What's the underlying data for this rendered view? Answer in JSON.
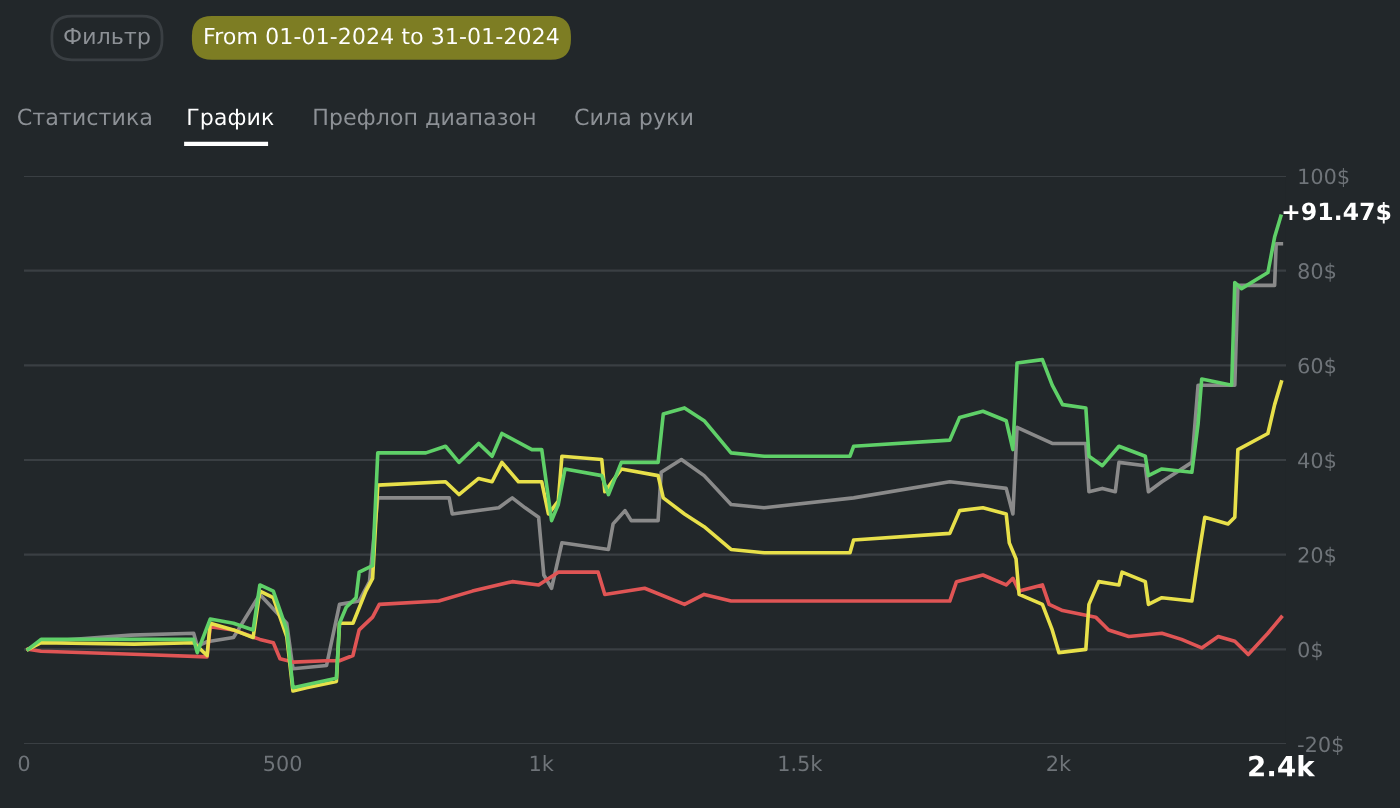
{
  "chart_data": {
    "type": "line",
    "xlim": [
      0,
      2440
    ],
    "ylim": [
      -20,
      100
    ],
    "xticks": [
      0,
      500,
      {
        "value": 1000,
        "label": "1k"
      },
      {
        "value": 1500,
        "label": "1.5k"
      },
      {
        "value": 2000,
        "label": "2k"
      },
      {
        "value": 2430,
        "label": "2.4k"
      }
    ],
    "yticks": [
      {
        "value": -20,
        "label": "-20$"
      },
      {
        "value": 0,
        "label": "0$"
      },
      {
        "value": 20,
        "label": "20$"
      },
      {
        "value": 40,
        "label": "40$"
      },
      {
        "value": 60,
        "label": "60$"
      },
      {
        "value": 80,
        "label": "80$"
      },
      {
        "value": 100,
        "label": "100$"
      }
    ],
    "grid": "y",
    "legend": false,
    "annotations": [
      "Фильтр",
      "From 01-01-2024 to 31-01-2024",
      "Статистика",
      "График",
      "Префлоп диапазон",
      "Сила руки",
      {
        "text": "+91.47$",
        "x": 2430,
        "y": 91.5
      }
    ],
    "series": [
      {
        "color": "#8a8a8a",
        "x": [
          8,
          33,
          207,
          328,
          335,
          354,
          405,
          456,
          508,
          520,
          585,
          610,
          648,
          668,
          684,
          822,
          828,
          918,
          944,
          969,
          995,
          1005,
          1020,
          1040,
          1130,
          1139,
          1162,
          1174,
          1226,
          1232,
          1271,
          1315,
          1367,
          1431,
          1604,
          1790,
          1899,
          1912,
          1920,
          1988,
          2053,
          2059,
          2085,
          2110,
          2117,
          2168,
          2174,
          2200,
          2258,
          2270,
          2341,
          2347,
          2418,
          2421,
          2431
        ],
        "values": [
          0,
          1.6,
          3.0,
          3.4,
          0.7,
          1.6,
          2.5,
          11.6,
          5.5,
          -4.1,
          -3.4,
          9.5,
          10.2,
          14.3,
          32.0,
          32.0,
          28.6,
          29.9,
          32.0,
          29.9,
          27.9,
          15.7,
          12.9,
          22.5,
          21.1,
          26.5,
          29.3,
          27.2,
          27.2,
          37.4,
          40.1,
          36.7,
          30.6,
          29.9,
          32.0,
          35.4,
          34.0,
          28.6,
          46.9,
          43.5,
          43.5,
          33.3,
          34.0,
          33.3,
          39.5,
          38.8,
          33.3,
          35.4,
          39.5,
          55.8,
          55.8,
          76.9,
          76.9,
          85.7,
          85.7
        ]
      },
      {
        "color": "#e05555",
        "x": [
          8,
          33,
          226,
          354,
          360,
          405,
          456,
          482,
          495,
          520,
          585,
          610,
          636,
          648,
          674,
          687,
          802,
          867,
          944,
          995,
          1033,
          1110,
          1123,
          1200,
          1277,
          1315,
          1367,
          1790,
          1803,
          1854,
          1899,
          1912,
          1924,
          1969,
          1982,
          2008,
          2072,
          2097,
          2136,
          2200,
          2238,
          2277,
          2309,
          2341,
          2367,
          2405,
          2431
        ],
        "values": [
          0,
          -0.4,
          -1.1,
          -1.6,
          4.8,
          4.1,
          2.1,
          1.4,
          -2.0,
          -2.7,
          -2.4,
          -2.4,
          -1.3,
          4.1,
          6.8,
          9.5,
          10.2,
          12.3,
          14.3,
          13.6,
          16.3,
          16.3,
          11.6,
          12.9,
          9.5,
          11.6,
          10.2,
          10.2,
          14.3,
          15.7,
          13.6,
          15.0,
          12.3,
          13.6,
          9.5,
          8.2,
          6.8,
          4.1,
          2.7,
          3.4,
          2.1,
          0.3,
          2.7,
          1.7,
          -1.1,
          3.4,
          6.8
        ]
      },
      {
        "color": "#e8e04a",
        "x": [
          8,
          33,
          213,
          328,
          354,
          360,
          405,
          443,
          456,
          482,
          508,
          520,
          546,
          604,
          610,
          636,
          661,
          674,
          684,
          815,
          841,
          879,
          905,
          924,
          956,
          1001,
          1014,
          1033,
          1040,
          1117,
          1123,
          1155,
          1226,
          1236,
          1277,
          1315,
          1367,
          1431,
          1597,
          1604,
          1790,
          1809,
          1854,
          1899,
          1905,
          1918,
          1924,
          1969,
          1988,
          2001,
          2053,
          2059,
          2078,
          2117,
          2123,
          2168,
          2174,
          2200,
          2258,
          2270,
          2283,
          2328,
          2341,
          2347,
          2405,
          2418,
          2431
        ],
        "values": [
          0,
          1.4,
          1.1,
          1.4,
          -1.3,
          5.5,
          4.1,
          2.5,
          12.3,
          10.9,
          2.7,
          -8.8,
          -8.1,
          -6.8,
          5.5,
          5.5,
          12.3,
          15.0,
          34.7,
          35.4,
          32.7,
          36.1,
          35.4,
          39.5,
          35.4,
          35.4,
          28.6,
          31.3,
          40.8,
          40.1,
          33.3,
          38.1,
          36.7,
          32.0,
          28.6,
          25.9,
          21.1,
          20.4,
          20.4,
          23.1,
          24.5,
          29.3,
          29.9,
          28.6,
          22.5,
          19.1,
          11.6,
          9.5,
          4.1,
          -0.7,
          0,
          9.5,
          14.3,
          13.6,
          16.3,
          14.3,
          9.5,
          10.9,
          10.2,
          19.1,
          27.9,
          26.5,
          27.9,
          42.2,
          45.6,
          51.7,
          56.5
        ]
      },
      {
        "color": "#5fd068",
        "x": [
          8,
          33,
          213,
          328,
          335,
          360,
          405,
          443,
          456,
          482,
          508,
          520,
          546,
          604,
          610,
          623,
          642,
          648,
          674,
          684,
          777,
          815,
          841,
          879,
          905,
          924,
          982,
          1001,
          1020,
          1033,
          1046,
          1117,
          1130,
          1155,
          1226,
          1236,
          1277,
          1315,
          1367,
          1431,
          1597,
          1604,
          1790,
          1809,
          1854,
          1899,
          1912,
          1920,
          1969,
          1988,
          2008,
          2053,
          2059,
          2085,
          2117,
          2168,
          2174,
          2200,
          2258,
          2270,
          2277,
          2335,
          2341,
          2354,
          2405,
          2418,
          2430
        ],
        "values": [
          0,
          2.1,
          2.1,
          2.1,
          -0.7,
          6.4,
          5.5,
          4.1,
          13.6,
          12.3,
          4.1,
          -8.1,
          -7.5,
          -6.1,
          5.5,
          8.9,
          10.9,
          16.3,
          17.7,
          41.5,
          41.5,
          42.9,
          39.5,
          43.5,
          40.8,
          45.6,
          42.2,
          42.2,
          27.2,
          30.6,
          38.1,
          36.7,
          32.7,
          39.5,
          39.5,
          49.7,
          51.0,
          48.3,
          41.5,
          40.8,
          40.8,
          42.9,
          44.2,
          49.0,
          50.3,
          48.3,
          42.2,
          60.5,
          61.2,
          55.8,
          51.7,
          51.0,
          40.8,
          38.8,
          42.9,
          40.8,
          36.7,
          38.1,
          37.4,
          47.6,
          57.1,
          55.8,
          77.5,
          76.2,
          79.6,
          87.1,
          91.5
        ]
      }
    ]
  }
}
